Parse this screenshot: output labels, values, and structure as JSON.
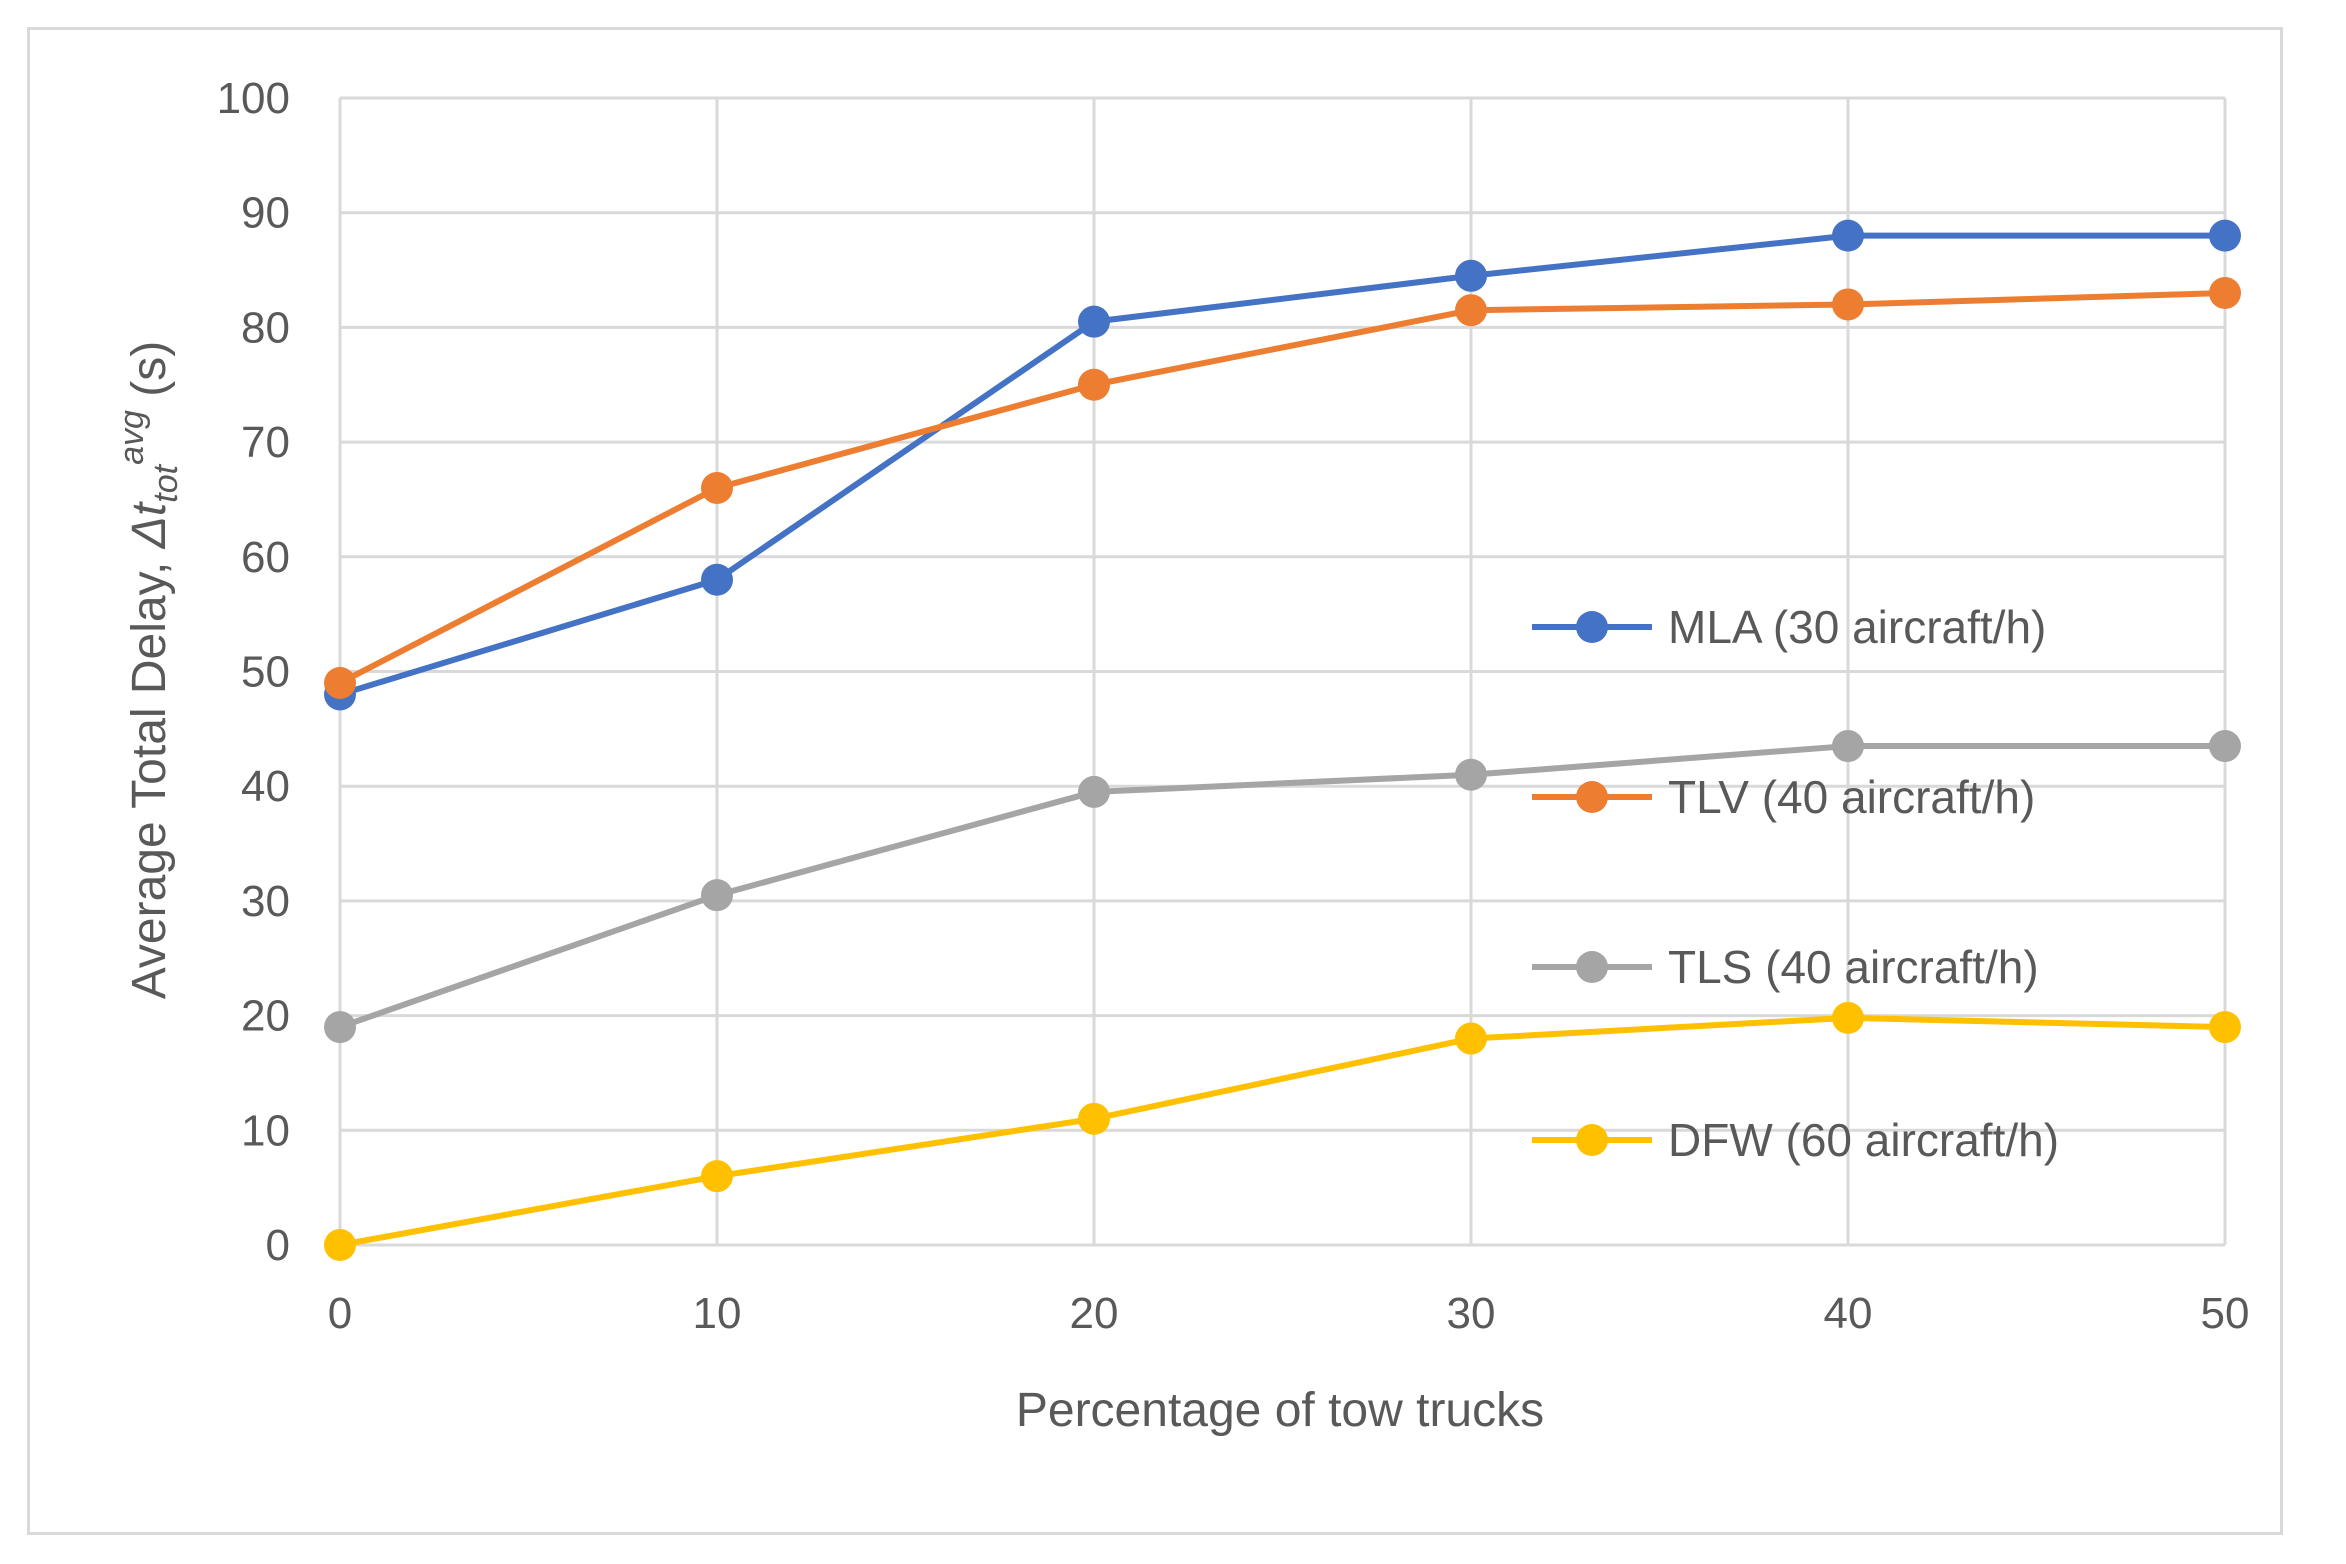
{
  "chart_data": {
    "type": "line",
    "title": "",
    "xlabel": "Percentage of tow trucks",
    "ylabel_parts": {
      "prefix": "Average Total Delay, ",
      "symbol": "Δt",
      "subscript": "tot",
      "superscript": "avg",
      "suffix": " (s)"
    },
    "x": [
      0,
      10,
      20,
      30,
      40,
      50
    ],
    "xlim": [
      0,
      50
    ],
    "ylim": [
      0,
      100
    ],
    "xticks": [
      "0",
      "10",
      "20",
      "30",
      "40",
      "50"
    ],
    "yticks": [
      "0",
      "10",
      "20",
      "30",
      "40",
      "50",
      "60",
      "70",
      "80",
      "90",
      "100"
    ],
    "grid": true,
    "legend_position": "right",
    "series": [
      {
        "name": "MLA (30 aircraft/h)",
        "color": "#4472c4",
        "values": [
          48,
          58,
          80.5,
          84.5,
          88,
          88
        ]
      },
      {
        "name": "TLV (40 aircraft/h)",
        "color": "#ed7d31",
        "values": [
          49,
          66,
          75,
          81.5,
          82,
          83
        ]
      },
      {
        "name": "TLS (40 aircraft/h)",
        "color": "#a5a5a5",
        "values": [
          19,
          30.5,
          39.5,
          41,
          43.5,
          43.5
        ]
      },
      {
        "name": "DFW (60 aircraft/h)",
        "color": "#ffc000",
        "values": [
          0,
          6,
          11,
          18,
          19.8,
          19
        ]
      }
    ]
  }
}
